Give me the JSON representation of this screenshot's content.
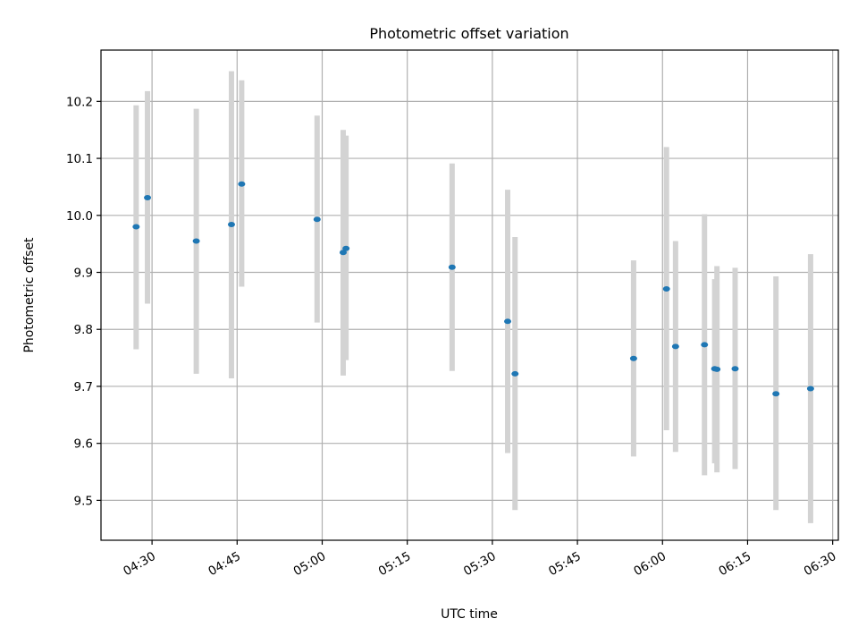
{
  "chart_data": {
    "type": "scatter",
    "title": "Photometric offset variation",
    "xlabel": "UTC time",
    "ylabel": "Photometric offset",
    "xlim": [
      "04:21",
      "06:31"
    ],
    "ylim": [
      9.43,
      10.29
    ],
    "x_ticks": [
      "04:30",
      "04:45",
      "05:00",
      "05:15",
      "05:30",
      "05:45",
      "06:00",
      "06:15",
      "06:30"
    ],
    "y_ticks": [
      "9.5",
      "9.6",
      "9.7",
      "9.8",
      "9.9",
      "10.0",
      "10.1",
      "10.2"
    ],
    "grid": true,
    "colors": {
      "point": "#1f77b4",
      "error_bar": "#d3d3d3"
    },
    "points": [
      {
        "x": "04:27:12",
        "y": 9.98,
        "y_low": 9.765,
        "y_high": 10.193
      },
      {
        "x": "04:29:12",
        "y": 10.031,
        "y_low": 9.845,
        "y_high": 10.218
      },
      {
        "x": "04:37:48",
        "y": 9.955,
        "y_low": 9.722,
        "y_high": 10.187
      },
      {
        "x": "04:44:00",
        "y": 9.984,
        "y_low": 9.714,
        "y_high": 10.253
      },
      {
        "x": "04:45:48",
        "y": 10.055,
        "y_low": 9.875,
        "y_high": 10.237
      },
      {
        "x": "04:59:06",
        "y": 9.993,
        "y_low": 9.812,
        "y_high": 10.175
      },
      {
        "x": "05:03:42",
        "y": 9.935,
        "y_low": 9.719,
        "y_high": 10.15
      },
      {
        "x": "05:04:12",
        "y": 9.942,
        "y_low": 9.746,
        "y_high": 10.14
      },
      {
        "x": "05:22:54",
        "y": 9.909,
        "y_low": 9.727,
        "y_high": 10.091
      },
      {
        "x": "05:32:42",
        "y": 9.814,
        "y_low": 9.583,
        "y_high": 10.045
      },
      {
        "x": "05:34:00",
        "y": 9.722,
        "y_low": 9.483,
        "y_high": 9.962
      },
      {
        "x": "05:54:54",
        "y": 9.749,
        "y_low": 9.577,
        "y_high": 9.921
      },
      {
        "x": "06:00:42",
        "y": 9.871,
        "y_low": 9.623,
        "y_high": 10.12
      },
      {
        "x": "06:02:18",
        "y": 9.77,
        "y_low": 9.585,
        "y_high": 9.955
      },
      {
        "x": "06:07:24",
        "y": 9.773,
        "y_low": 9.544,
        "y_high": 10.002
      },
      {
        "x": "06:09:12",
        "y": 9.731,
        "y_low": 9.565,
        "y_high": 9.888
      },
      {
        "x": "06:09:36",
        "y": 9.73,
        "y_low": 9.549,
        "y_high": 9.911
      },
      {
        "x": "06:12:48",
        "y": 9.731,
        "y_low": 9.555,
        "y_high": 9.908
      },
      {
        "x": "06:20:00",
        "y": 9.687,
        "y_low": 9.483,
        "y_high": 9.893
      },
      {
        "x": "06:26:06",
        "y": 9.696,
        "y_low": 9.46,
        "y_high": 9.932
      }
    ]
  }
}
